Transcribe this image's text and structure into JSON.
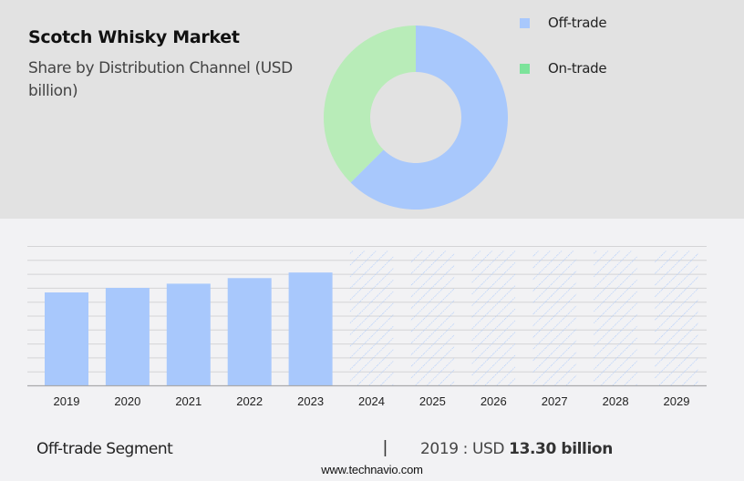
{
  "header": {
    "title": "Scotch Whisky Market",
    "subtitle": "Share by Distribution Channel (USD billion)"
  },
  "legend": [
    {
      "label": "Off-trade",
      "color": "#a8c8fc"
    },
    {
      "label": "On-trade",
      "color": "#7ce39a"
    }
  ],
  "footer": {
    "segment": "Off-trade Segment",
    "separator": "|",
    "year_prefix": "2019 : USD ",
    "value": "13.30 billion",
    "website": "www.technavio.com"
  },
  "colors": {
    "off_trade_bar": "#a8c8fc",
    "on_trade_slice": "#b8ecb8",
    "forecast_hatch": "#a8c8fc",
    "gridline": "#d4d4d6",
    "top_background": "#e2e2e2",
    "bottom_background": "#f2f2f4"
  },
  "chart_data": [
    {
      "type": "pie",
      "variant": "donut",
      "title": "Share by Distribution Channel (USD billion)",
      "labels": [
        "Off-trade",
        "On-trade"
      ],
      "values": [
        62.5,
        37.5
      ],
      "colors": [
        "#a8c8fc",
        "#b8ecb8"
      ],
      "legend_position": "right"
    },
    {
      "type": "bar",
      "title": "Scotch Whisky Market - Off-trade Segment",
      "categories": [
        "2019",
        "2020",
        "2021",
        "2022",
        "2023",
        "2024",
        "2025",
        "2026",
        "2027",
        "2028",
        "2029"
      ],
      "series": [
        {
          "name": "Off-trade (historic)",
          "values": [
            13.3,
            13.95,
            14.55,
            15.35,
            16.15,
            null,
            null,
            null,
            null,
            null,
            null
          ]
        },
        {
          "name": "Off-trade (forecast, hatched)",
          "values": [
            null,
            null,
            null,
            null,
            null,
            20.0,
            20.0,
            20.0,
            20.0,
            20.0,
            20.0
          ]
        }
      ],
      "xlabel": "",
      "ylabel": "",
      "ylim": [
        0,
        20
      ],
      "grid": true,
      "y_ticks_visible": false,
      "annotation": "2019 : USD 13.30 billion"
    }
  ]
}
